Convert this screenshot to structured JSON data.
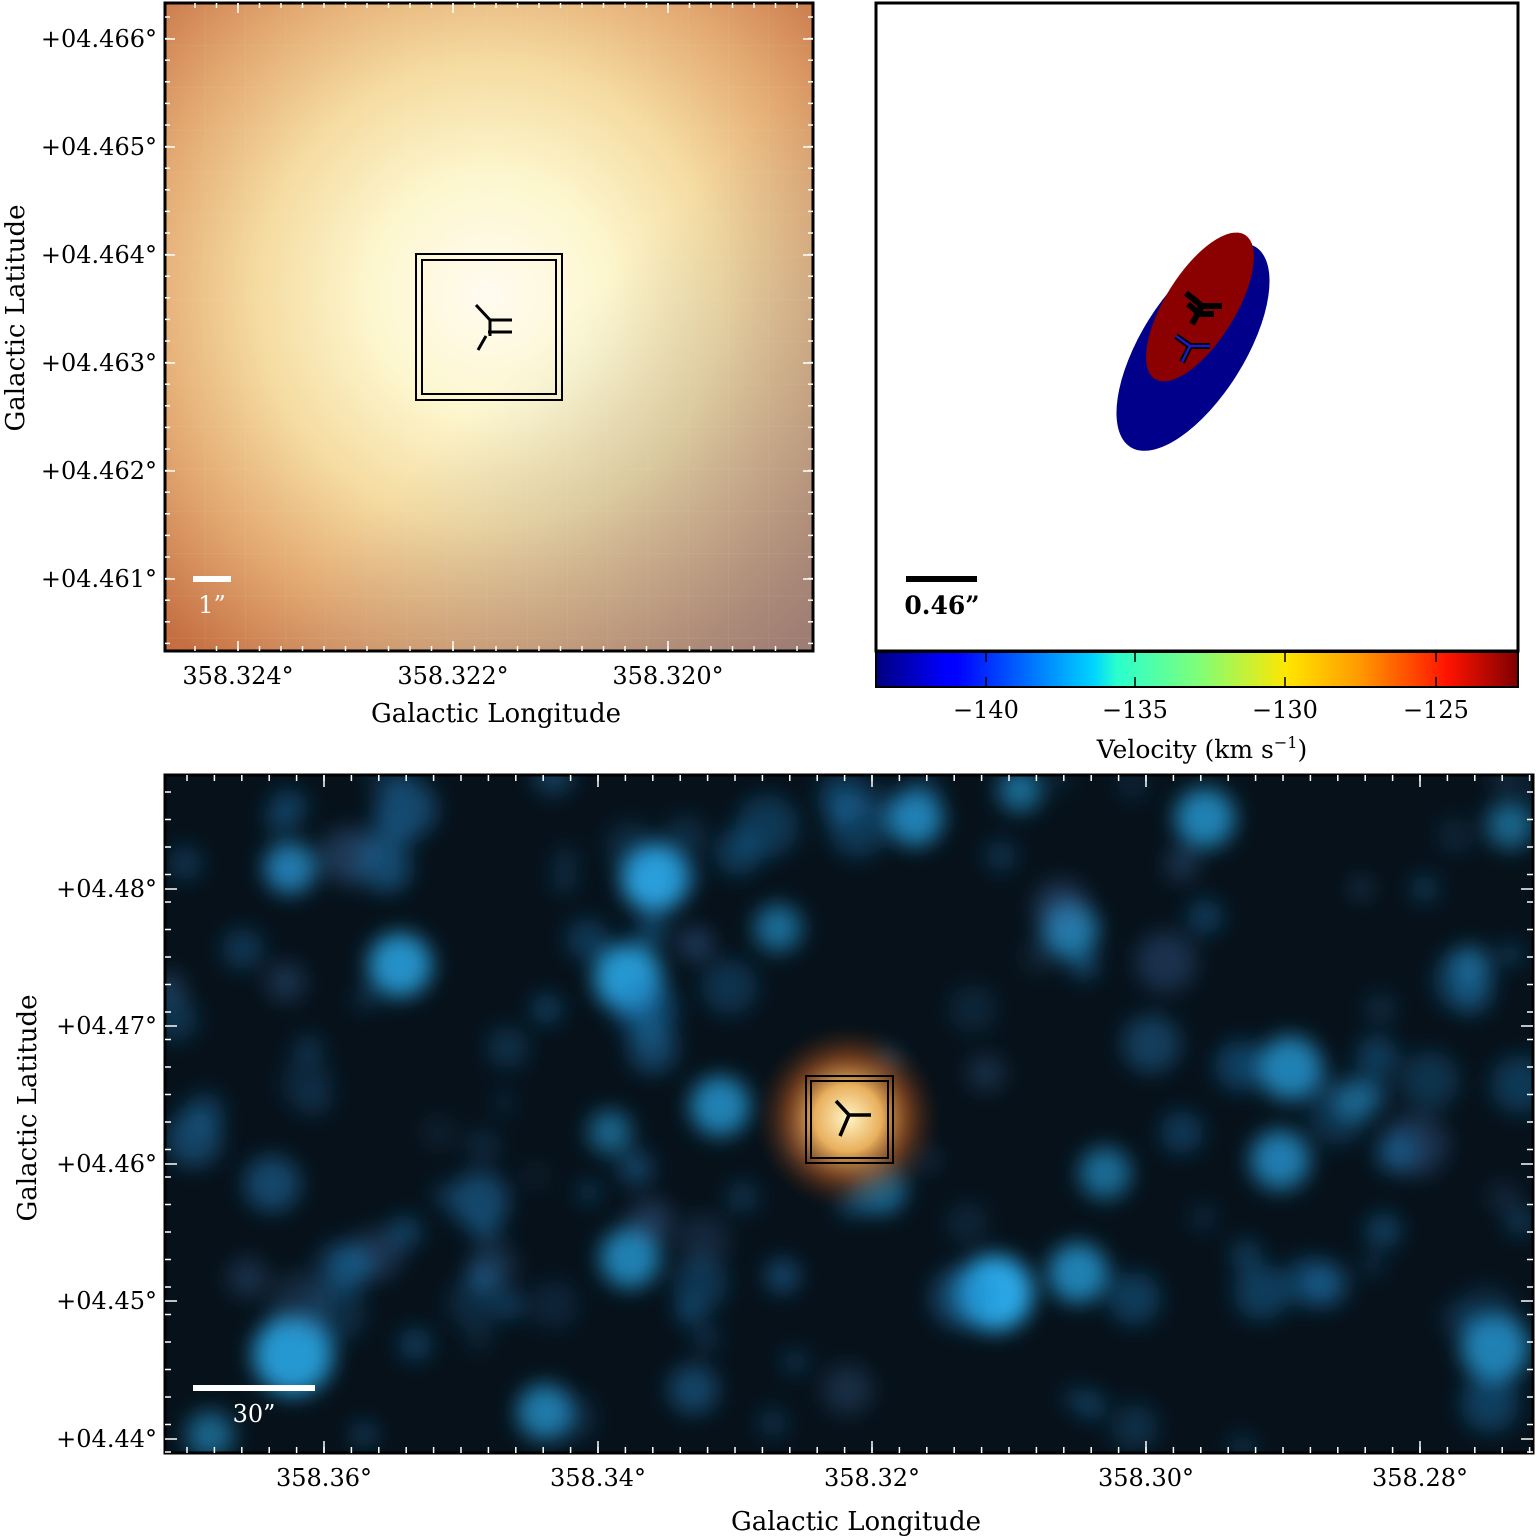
{
  "panel_tl": {
    "x_axis_label": "Galactic Longitude",
    "y_axis_label": "Galactic Latitude",
    "x_ticks": [
      "358.324°",
      "358.322°",
      "358.320°"
    ],
    "y_ticks": [
      "+04.466°",
      "+04.465°",
      "+04.464°",
      "+04.463°",
      "+04.462°",
      "+04.461°"
    ],
    "scalebar_label": "1”",
    "colors": {
      "edge": "#c46e42",
      "center": "#fffbee",
      "bottom_right": "#a08e9a"
    }
  },
  "panel_tr": {
    "scalebar_label": "0.46”",
    "colorbar": {
      "label": "Velocity (km s",
      "label_exp": "−1",
      "label_close": ")",
      "ticks": [
        "−140",
        "−135",
        "−130",
        "−125"
      ],
      "range": [
        -143.5,
        -122.3
      ]
    },
    "colors": {
      "red_ellipse": "#8b0000",
      "blue_ellipse": "#00008b"
    }
  },
  "panel_bottom": {
    "x_axis_label": "Galactic Longitude",
    "y_axis_label": "Galactic Latitude",
    "x_ticks": [
      "358.36°",
      "358.34°",
      "358.32°",
      "358.30°",
      "358.28°"
    ],
    "y_ticks": [
      "+04.48°",
      "+04.47°",
      "+04.46°",
      "+04.45°",
      "+04.44°"
    ],
    "scalebar_label": "30”",
    "colors": {
      "background": "#06111a",
      "star": "#2aa7e6",
      "source": "#ffe9a0"
    }
  }
}
